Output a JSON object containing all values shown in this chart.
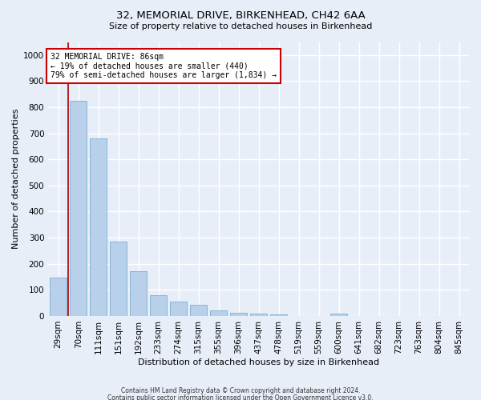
{
  "title": "32, MEMORIAL DRIVE, BIRKENHEAD, CH42 6AA",
  "subtitle": "Size of property relative to detached houses in Birkenhead",
  "xlabel": "Distribution of detached houses by size in Birkenhead",
  "ylabel": "Number of detached properties",
  "footnote1": "Contains HM Land Registry data © Crown copyright and database right 2024.",
  "footnote2": "Contains public sector information licensed under the Open Government Licence v3.0.",
  "categories": [
    "29sqm",
    "70sqm",
    "111sqm",
    "151sqm",
    "192sqm",
    "233sqm",
    "274sqm",
    "315sqm",
    "355sqm",
    "396sqm",
    "437sqm",
    "478sqm",
    "519sqm",
    "559sqm",
    "600sqm",
    "641sqm",
    "682sqm",
    "723sqm",
    "763sqm",
    "804sqm",
    "845sqm"
  ],
  "values": [
    148,
    825,
    681,
    284,
    172,
    80,
    55,
    42,
    22,
    13,
    8,
    5,
    0,
    0,
    10,
    0,
    0,
    0,
    0,
    0,
    0
  ],
  "bar_color": "#b8d0ea",
  "bar_edge_color": "#7aafd4",
  "vline_x": 0.5,
  "vline_color": "#aa0000",
  "annotation_text": "32 MEMORIAL DRIVE: 86sqm\n← 19% of detached houses are smaller (440)\n79% of semi-detached houses are larger (1,834) →",
  "annotation_box_color": "white",
  "annotation_box_edge": "#cc0000",
  "ylim": [
    0,
    1050
  ],
  "yticks": [
    0,
    100,
    200,
    300,
    400,
    500,
    600,
    700,
    800,
    900,
    1000
  ],
  "background_color": "#e8eef8",
  "plot_bg_color": "#e8eef8",
  "grid_color": "white",
  "title_fontsize": 9.5,
  "subtitle_fontsize": 8.0,
  "ylabel_fontsize": 8.0,
  "xlabel_fontsize": 8.0,
  "tick_fontsize": 7.5,
  "annot_fontsize": 7.0,
  "footnote_fontsize": 5.5
}
